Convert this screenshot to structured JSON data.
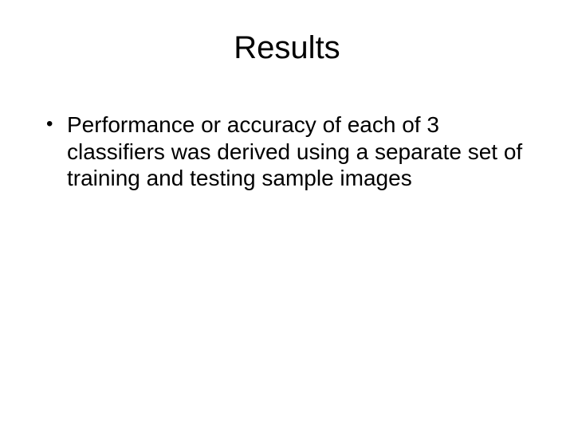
{
  "slide": {
    "title": "Results",
    "bullets": [
      "Performance or accuracy of each of 3 classifiers was derived using a separate set of training and testing sample images"
    ],
    "title_fontsize": 40,
    "body_fontsize": 28,
    "background_color": "#ffffff",
    "text_color": "#000000",
    "font_family": "Arial"
  }
}
